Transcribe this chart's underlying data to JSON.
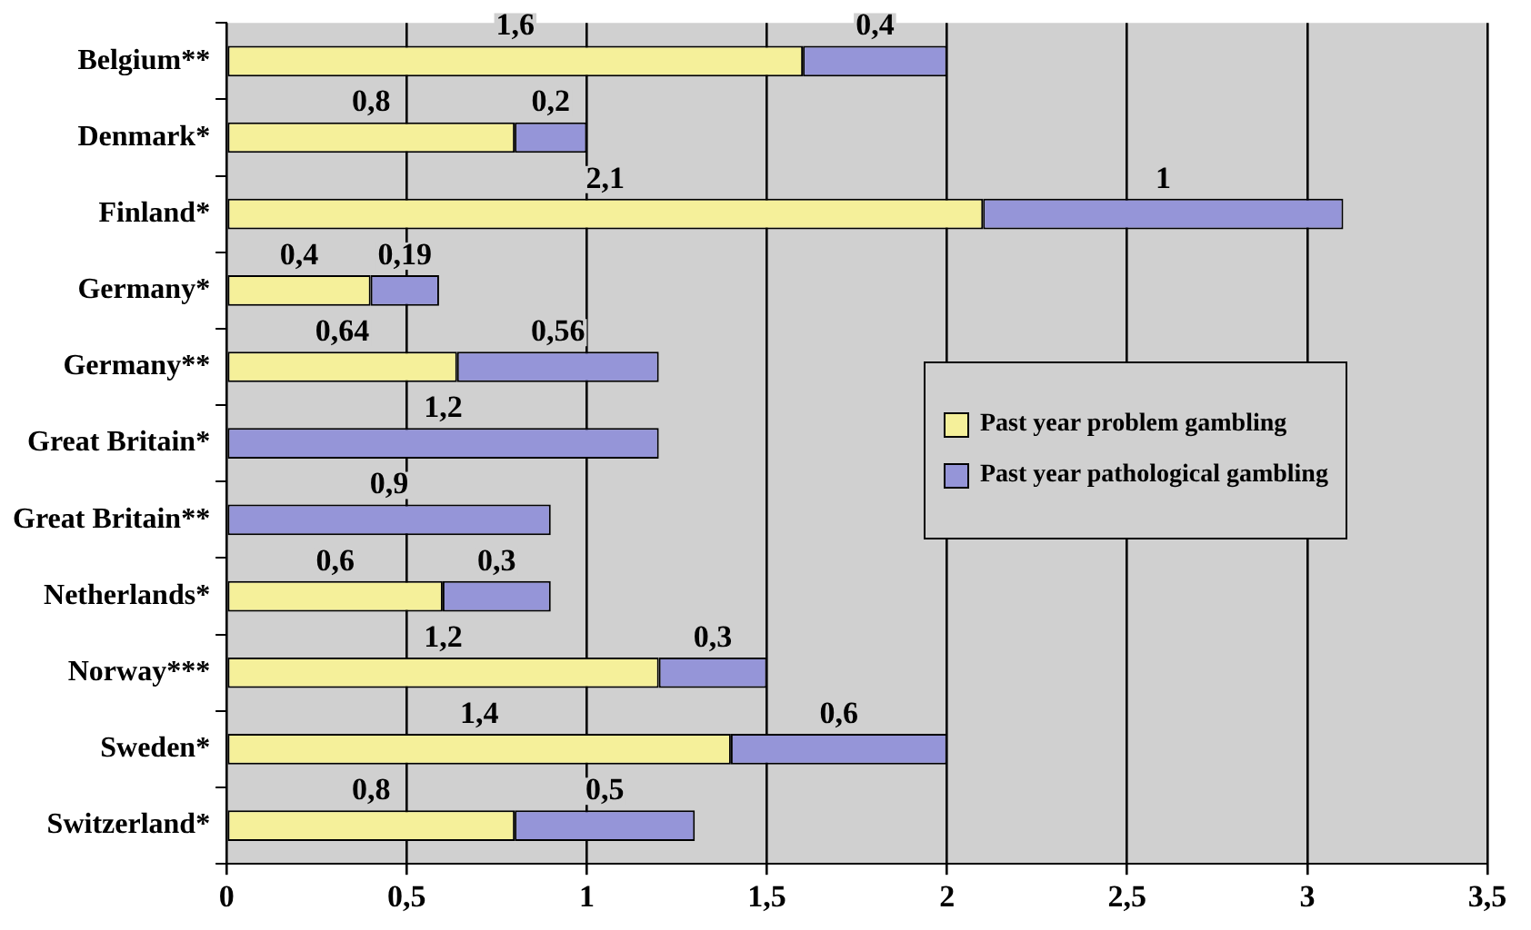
{
  "chart_data": {
    "type": "bar",
    "orientation": "horizontal",
    "stacked": true,
    "categories": [
      "Belgium**",
      "Denmark*",
      "Finland*",
      "Germany*",
      "Germany**",
      "Great Britain*",
      "Great Britain**",
      "Netherlands*",
      "Norway***",
      "Sweden*",
      "Switzerland*"
    ],
    "series": [
      {
        "name": "Past year problem gambling",
        "color": "#f5f09a",
        "values": [
          1.6,
          0.8,
          2.1,
          0.4,
          0.64,
          null,
          null,
          0.6,
          1.2,
          1.4,
          0.8
        ],
        "value_labels": [
          "1,6",
          "0,8",
          "2,1",
          "0,4",
          "0,64",
          null,
          null,
          "0,6",
          "1,2",
          "1,4",
          "0,8"
        ]
      },
      {
        "name": "Past year pathological gambling",
        "color": "#9595d8",
        "values": [
          0.4,
          0.2,
          1,
          0.19,
          0.56,
          1.2,
          0.9,
          0.3,
          0.3,
          0.6,
          0.5
        ],
        "value_labels": [
          "0,4",
          "0,2",
          "1",
          "0,19",
          "0,56",
          "1,2",
          "0,9",
          "0,3",
          "0,3",
          "0,6",
          "0,5"
        ]
      }
    ],
    "xlim": [
      0,
      3.5
    ],
    "xticks": [
      0,
      {
        "value": 0.5,
        "label": "0,5"
      },
      1,
      {
        "value": 1.5,
        "label": "1,5"
      },
      2,
      {
        "value": 2.5,
        "label": "2,5"
      },
      3,
      {
        "value": 3.5,
        "label": "3,5"
      }
    ],
    "grid": "x",
    "legend": "right"
  }
}
